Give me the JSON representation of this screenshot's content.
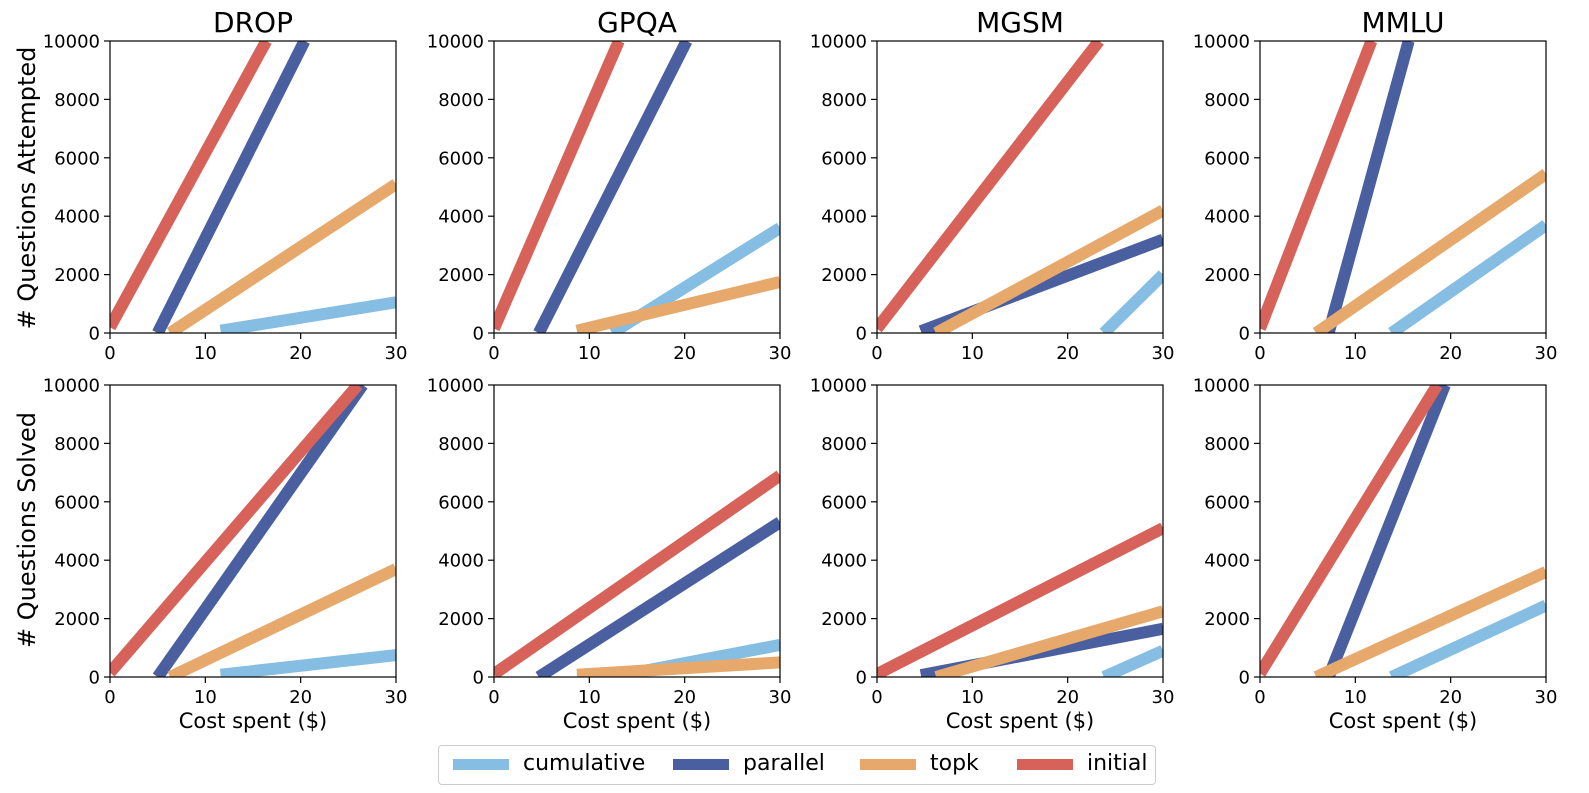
{
  "chart_data": {
    "type": "line",
    "layout": "2x4 small multiples",
    "columns": [
      "DROP",
      "GPQA",
      "MGSM",
      "MMLU"
    ],
    "row_ylabels": [
      "# Questions Attempted",
      "# Questions Solved"
    ],
    "xlabel": "Cost spent ($)",
    "xlim": [
      0,
      30
    ],
    "ylim": [
      0,
      10000
    ],
    "xticks": [
      0,
      10,
      20,
      30
    ],
    "yticks": [
      0,
      2000,
      4000,
      6000,
      8000,
      10000
    ],
    "grid": false,
    "legend": {
      "placement": "bottom-center",
      "ncol": 4,
      "entries": [
        "cumulative",
        "parallel",
        "topk",
        "initial"
      ]
    },
    "series_colors": {
      "cumulative": "#85bde3",
      "parallel": "#4a5f9f",
      "topk": "#e6a96b",
      "initial": "#d6625a"
    },
    "panels": [
      {
        "row": 0,
        "col": 0,
        "title": "DROP",
        "series": [
          {
            "name": "cumulative",
            "x": [
              11.6,
              30
            ],
            "y": [
              80,
              1050
            ]
          },
          {
            "name": "parallel",
            "x": [
              5,
              20.4
            ],
            "y": [
              0,
              10000
            ]
          },
          {
            "name": "topk",
            "x": [
              6.3,
              30
            ],
            "y": [
              0,
              5100
            ]
          },
          {
            "name": "initial",
            "x": [
              0,
              16.4
            ],
            "y": [
              200,
              10000
            ]
          }
        ]
      },
      {
        "row": 0,
        "col": 1,
        "title": "GPQA",
        "series": [
          {
            "name": "cumulative",
            "x": [
              12.4,
              30
            ],
            "y": [
              0,
              3600
            ]
          },
          {
            "name": "parallel",
            "x": [
              4.7,
              20.2
            ],
            "y": [
              0,
              10000
            ]
          },
          {
            "name": "topk",
            "x": [
              8.7,
              30
            ],
            "y": [
              80,
              1750
            ]
          },
          {
            "name": "initial",
            "x": [
              0,
              13.1
            ],
            "y": [
              150,
              10000
            ]
          }
        ]
      },
      {
        "row": 0,
        "col": 2,
        "title": "MGSM",
        "series": [
          {
            "name": "cumulative",
            "x": [
              23.8,
              30
            ],
            "y": [
              0,
              2000
            ]
          },
          {
            "name": "parallel",
            "x": [
              4.6,
              30
            ],
            "y": [
              60,
              3200
            ]
          },
          {
            "name": "topk",
            "x": [
              6.2,
              30
            ],
            "y": [
              0,
              4200
            ]
          },
          {
            "name": "initial",
            "x": [
              0,
              23.3
            ],
            "y": [
              150,
              10000
            ]
          }
        ]
      },
      {
        "row": 0,
        "col": 3,
        "title": "MMLU",
        "series": [
          {
            "name": "cumulative",
            "x": [
              13.8,
              30
            ],
            "y": [
              0,
              3700
            ]
          },
          {
            "name": "parallel",
            "x": [
              7.2,
              15.6
            ],
            "y": [
              0,
              10000
            ]
          },
          {
            "name": "topk",
            "x": [
              5.9,
              30
            ],
            "y": [
              0,
              5450
            ]
          },
          {
            "name": "initial",
            "x": [
              0,
              11.7
            ],
            "y": [
              150,
              10000
            ]
          }
        ]
      },
      {
        "row": 1,
        "col": 0,
        "title": "",
        "series": [
          {
            "name": "cumulative",
            "x": [
              11.6,
              30
            ],
            "y": [
              80,
              750
            ]
          },
          {
            "name": "parallel",
            "x": [
              5,
              26.5
            ],
            "y": [
              0,
              10000
            ]
          },
          {
            "name": "topk",
            "x": [
              6.3,
              30
            ],
            "y": [
              0,
              3700
            ]
          },
          {
            "name": "initial",
            "x": [
              0,
              26
            ],
            "y": [
              150,
              10000
            ]
          }
        ]
      },
      {
        "row": 1,
        "col": 1,
        "title": "",
        "series": [
          {
            "name": "cumulative",
            "x": [
              12.4,
              30
            ],
            "y": [
              0,
              1100
            ]
          },
          {
            "name": "parallel",
            "x": [
              4.7,
              30
            ],
            "y": [
              0,
              5300
            ]
          },
          {
            "name": "topk",
            "x": [
              8.7,
              30
            ],
            "y": [
              80,
              500
            ]
          },
          {
            "name": "initial",
            "x": [
              0,
              30
            ],
            "y": [
              100,
              6900
            ]
          }
        ]
      },
      {
        "row": 1,
        "col": 2,
        "title": "",
        "series": [
          {
            "name": "cumulative",
            "x": [
              23.8,
              30
            ],
            "y": [
              0,
              900
            ]
          },
          {
            "name": "parallel",
            "x": [
              4.6,
              30
            ],
            "y": [
              60,
              1650
            ]
          },
          {
            "name": "topk",
            "x": [
              6.2,
              30
            ],
            "y": [
              0,
              2250
            ]
          },
          {
            "name": "initial",
            "x": [
              0,
              30
            ],
            "y": [
              100,
              5100
            ]
          }
        ]
      },
      {
        "row": 1,
        "col": 3,
        "title": "",
        "series": [
          {
            "name": "cumulative",
            "x": [
              13.8,
              30
            ],
            "y": [
              0,
              2450
            ]
          },
          {
            "name": "parallel",
            "x": [
              7.2,
              19.4
            ],
            "y": [
              0,
              10000
            ]
          },
          {
            "name": "topk",
            "x": [
              5.9,
              30
            ],
            "y": [
              0,
              3600
            ]
          },
          {
            "name": "initial",
            "x": [
              0,
              18.6
            ],
            "y": [
              120,
              10000
            ]
          }
        ]
      }
    ]
  }
}
